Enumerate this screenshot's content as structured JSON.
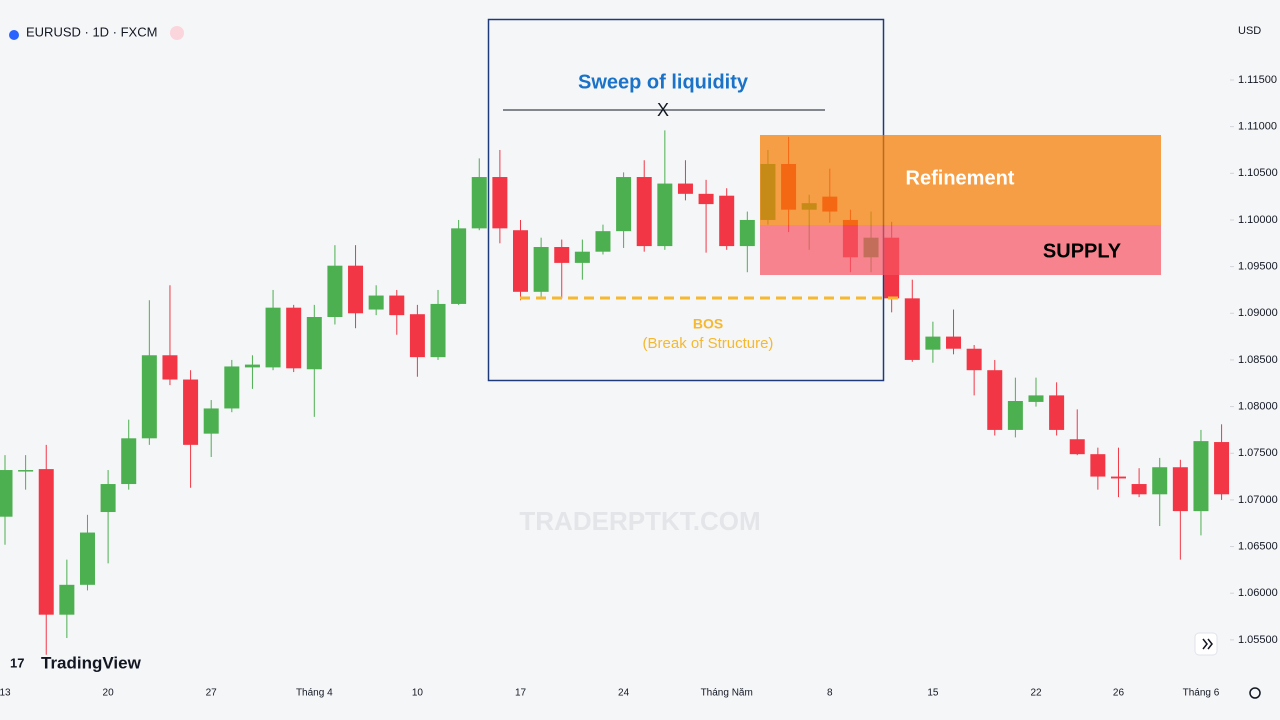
{
  "header": {
    "symbol": "EURUSD · 1D · FXCM",
    "currency": "USD",
    "brand": "TradingView"
  },
  "chart_data": {
    "type": "candlestick",
    "up_color": "#4caf50",
    "down_color": "#f23645",
    "categories": [
      "13",
      null,
      null,
      null,
      null,
      "20",
      null,
      null,
      null,
      null,
      "27",
      null,
      null,
      null,
      null,
      "Tháng 4",
      null,
      null,
      null,
      null,
      "10",
      null,
      null,
      null,
      null,
      "17",
      null,
      null,
      null,
      null,
      "24",
      null,
      null,
      null,
      null,
      "Tháng Năm",
      null,
      null,
      null,
      null,
      "8",
      null,
      null,
      null,
      null,
      "15",
      null,
      null,
      null,
      null,
      "22",
      null,
      null,
      null,
      "26",
      null,
      null,
      null,
      "Tháng 6",
      null
    ],
    "open": [
      1.0682,
      1.0731,
      1.0733,
      1.0577,
      1.0609,
      1.0687,
      1.0717,
      1.0766,
      1.0855,
      1.0829,
      1.0771,
      1.0798,
      1.0842,
      1.0842,
      1.0906,
      1.084,
      1.0896,
      1.0951,
      1.0904,
      1.0919,
      1.0899,
      1.0853,
      1.091,
      1.0991,
      1.1046,
      1.0989,
      1.0923,
      1.0971,
      1.0954,
      1.0966,
      1.0988,
      1.1046,
      1.0972,
      1.1039,
      1.1028,
      1.1026,
      1.0972,
      1.1,
      1.106,
      1.1011,
      1.1025,
      1.1,
      1.096,
      1.0981,
      1.0916,
      1.0861,
      1.0875,
      1.0862,
      1.0839,
      1.0775,
      1.0805,
      1.0812,
      1.0765,
      1.0749,
      1.0725,
      1.0717,
      1.0706,
      1.0735,
      1.0688,
      1.0762
    ],
    "high": [
      1.0748,
      1.0748,
      1.0759,
      1.0636,
      1.0684,
      1.0732,
      1.0786,
      1.0914,
      1.093,
      1.0839,
      1.0807,
      1.085,
      1.0855,
      1.0925,
      1.0909,
      1.0909,
      1.0973,
      1.0973,
      1.093,
      1.0925,
      1.0909,
      1.0925,
      1.1,
      1.1066,
      1.1075,
      1.1,
      1.0981,
      1.0979,
      1.0979,
      1.0995,
      1.1051,
      1.1064,
      1.1096,
      1.1064,
      1.1043,
      1.1034,
      1.1009,
      1.1075,
      1.1089,
      1.1027,
      1.1055,
      1.1011,
      1.1009,
      1.0998,
      1.0936,
      1.0891,
      1.0904,
      1.0866,
      1.085,
      1.0831,
      1.0831,
      1.0826,
      1.0797,
      1.0756,
      1.0756,
      1.0734,
      1.0745,
      1.0743,
      1.0775,
      1.0781
    ],
    "low": [
      1.0652,
      1.0711,
      1.0534,
      1.0552,
      1.0603,
      1.0632,
      1.0711,
      1.0759,
      1.0823,
      1.0713,
      1.0746,
      1.0794,
      1.0819,
      1.0839,
      1.0837,
      1.0789,
      1.0888,
      1.0884,
      1.0898,
      1.0877,
      1.0832,
      1.085,
      1.0909,
      1.0989,
      1.0975,
      1.0914,
      1.0918,
      1.0916,
      1.0936,
      1.0963,
      1.097,
      1.0966,
      1.0968,
      1.1021,
      1.0965,
      1.0968,
      1.0944,
      1.0995,
      1.0987,
      1.0968,
      1.0997,
      1.0944,
      1.0944,
      1.0901,
      1.0848,
      1.0847,
      1.0856,
      1.0812,
      1.0769,
      1.0767,
      1.08,
      1.0769,
      1.0748,
      1.0711,
      1.0703,
      1.0703,
      1.0672,
      1.0636,
      1.0662,
      1.07
    ],
    "close": [
      1.0732,
      1.0732,
      1.0577,
      1.0609,
      1.0665,
      1.0717,
      1.0766,
      1.0855,
      1.0829,
      1.0759,
      1.0798,
      1.0843,
      1.0845,
      1.0906,
      1.0841,
      1.0896,
      1.0951,
      1.09,
      1.0919,
      1.0898,
      1.0853,
      1.091,
      1.0991,
      1.1046,
      1.0991,
      1.0923,
      1.0971,
      1.0954,
      1.0966,
      1.0988,
      1.1046,
      1.0972,
      1.1039,
      1.1028,
      1.1017,
      1.0972,
      1.1,
      1.106,
      1.1011,
      1.1018,
      1.1009,
      1.096,
      1.0981,
      1.0916,
      1.085,
      1.0875,
      1.0862,
      1.0839,
      1.0775,
      1.0806,
      1.0812,
      1.0775,
      1.0749,
      1.0725,
      1.0723,
      1.0706,
      1.0735,
      1.0688,
      1.0763,
      1.0706
    ],
    "ylim": [
      1.0507,
      1.1225
    ],
    "yticks": [
      {
        "value": 1.115,
        "label": "1.11500"
      },
      {
        "value": 1.11,
        "label": "1.11000"
      },
      {
        "value": 1.105,
        "label": "1.10500"
      },
      {
        "value": 1.1,
        "label": "1.10000"
      },
      {
        "value": 1.095,
        "label": "1.09500"
      },
      {
        "value": 1.09,
        "label": "1.09000"
      },
      {
        "value": 1.085,
        "label": "1.08500"
      },
      {
        "value": 1.08,
        "label": "1.08000"
      },
      {
        "value": 1.075,
        "label": "1.07500"
      },
      {
        "value": 1.07,
        "label": "1.07000"
      },
      {
        "value": 1.065,
        "label": "1.06500"
      },
      {
        "value": 1.06,
        "label": "1.06000"
      },
      {
        "value": 1.055,
        "label": "1.05500"
      }
    ],
    "annotations": {
      "sweep": "Sweep of liquidity",
      "sweep_mark": "X",
      "refinement": "Refinement",
      "supply": "SUPPLY",
      "bos": "BOS",
      "bos_note": "(Break of Structure)",
      "watermark": "TRADERPTKT.COM"
    }
  }
}
